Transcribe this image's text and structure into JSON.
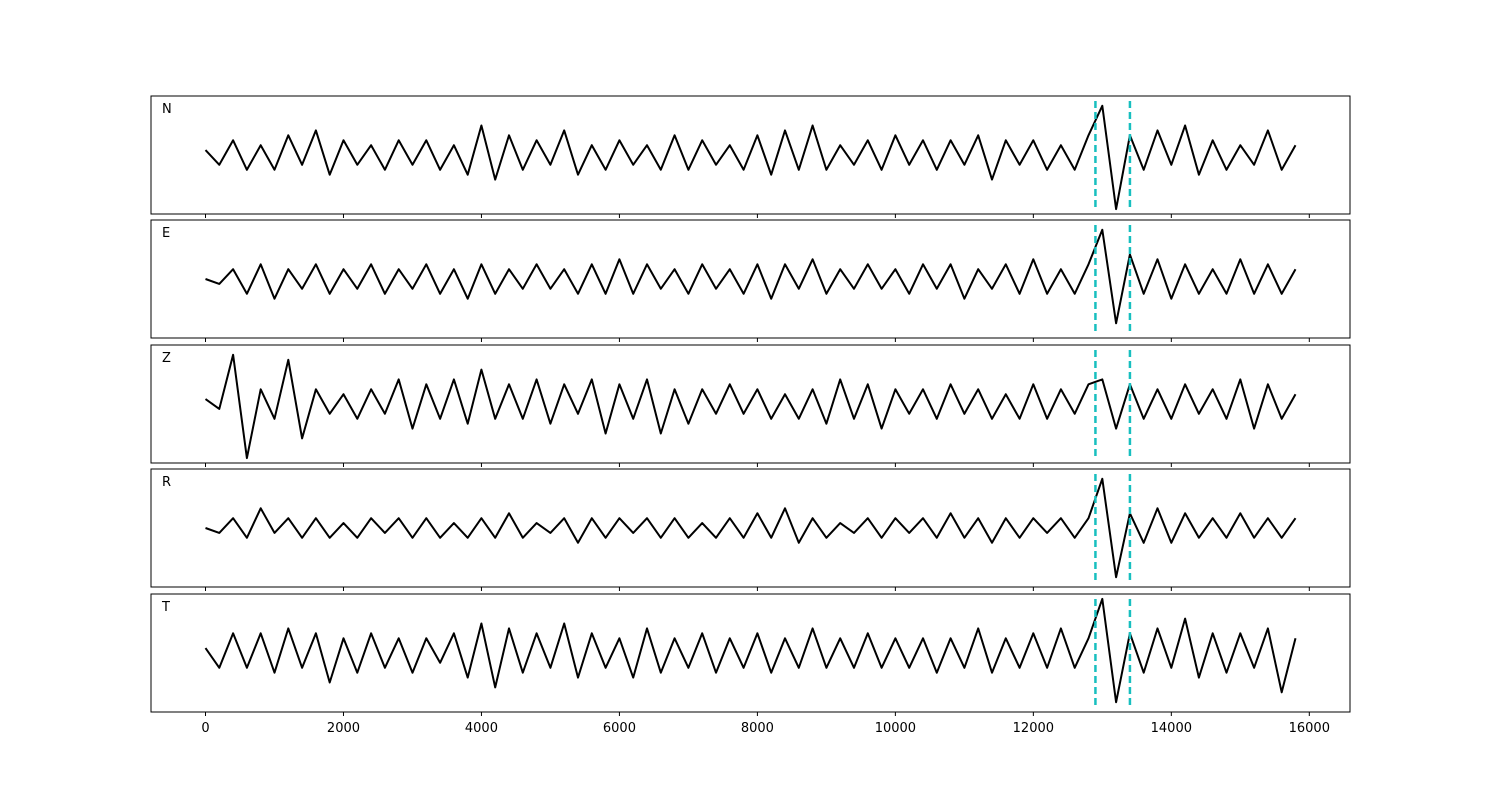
{
  "chart_data": {
    "type": "line",
    "x": [
      0,
      200,
      400,
      600,
      800,
      1000,
      1200,
      1400,
      1600,
      1800,
      2000,
      2200,
      2400,
      2600,
      2800,
      3000,
      3200,
      3400,
      3600,
      3800,
      4000,
      4200,
      4400,
      4600,
      4800,
      5000,
      5200,
      5400,
      5600,
      5800,
      6000,
      6200,
      6400,
      6600,
      6800,
      7000,
      7200,
      7400,
      7600,
      7800,
      8000,
      8200,
      8400,
      8600,
      8800,
      9000,
      9200,
      9400,
      9600,
      9800,
      10000,
      10200,
      10400,
      10600,
      10800,
      11000,
      11200,
      11400,
      11600,
      11800,
      12000,
      12200,
      12400,
      12600,
      12800,
      13000,
      13200,
      13400,
      13600,
      13800,
      14000,
      14200,
      14400,
      14600,
      14800,
      15000,
      15200,
      15400,
      15600,
      15800
    ],
    "xlim": [
      -790,
      16590
    ],
    "xticks": [
      0,
      2000,
      4000,
      6000,
      8000,
      10000,
      12000,
      14000,
      16000
    ],
    "ylim": [
      -1.2,
      1.2
    ],
    "series": [
      {
        "name": "N",
        "color": "#000000",
        "values": [
          0.1,
          -0.2,
          0.3,
          -0.3,
          0.2,
          -0.3,
          0.4,
          -0.2,
          0.5,
          -0.4,
          0.3,
          -0.2,
          0.2,
          -0.3,
          0.3,
          -0.2,
          0.3,
          -0.3,
          0.2,
          -0.4,
          0.6,
          -0.5,
          0.4,
          -0.3,
          0.3,
          -0.2,
          0.5,
          -0.4,
          0.2,
          -0.3,
          0.3,
          -0.2,
          0.2,
          -0.3,
          0.4,
          -0.3,
          0.3,
          -0.2,
          0.2,
          -0.3,
          0.4,
          -0.4,
          0.5,
          -0.3,
          0.6,
          -0.3,
          0.2,
          -0.2,
          0.3,
          -0.3,
          0.4,
          -0.2,
          0.3,
          -0.3,
          0.3,
          -0.2,
          0.4,
          -0.5,
          0.3,
          -0.2,
          0.3,
          -0.3,
          0.2,
          -0.3,
          0.4,
          1.0,
          -1.1,
          0.4,
          -0.3,
          0.5,
          -0.2,
          0.6,
          -0.4,
          0.3,
          -0.3,
          0.2,
          -0.2,
          0.5,
          -0.3,
          0.2
        ]
      },
      {
        "name": "E",
        "color": "#000000",
        "values": [
          0.0,
          -0.1,
          0.2,
          -0.3,
          0.3,
          -0.4,
          0.2,
          -0.2,
          0.3,
          -0.3,
          0.2,
          -0.2,
          0.3,
          -0.3,
          0.2,
          -0.2,
          0.3,
          -0.3,
          0.2,
          -0.4,
          0.3,
          -0.3,
          0.2,
          -0.2,
          0.3,
          -0.2,
          0.2,
          -0.3,
          0.3,
          -0.3,
          0.4,
          -0.3,
          0.3,
          -0.2,
          0.2,
          -0.3,
          0.3,
          -0.2,
          0.2,
          -0.3,
          0.3,
          -0.4,
          0.3,
          -0.2,
          0.4,
          -0.3,
          0.2,
          -0.2,
          0.3,
          -0.2,
          0.2,
          -0.3,
          0.3,
          -0.2,
          0.3,
          -0.4,
          0.2,
          -0.2,
          0.3,
          -0.3,
          0.4,
          -0.3,
          0.2,
          -0.3,
          0.3,
          1.0,
          -0.9,
          0.5,
          -0.3,
          0.4,
          -0.4,
          0.3,
          -0.3,
          0.2,
          -0.3,
          0.4,
          -0.3,
          0.3,
          -0.3,
          0.2
        ]
      },
      {
        "name": "Z",
        "color": "#000000",
        "values": [
          0.1,
          -0.1,
          1.0,
          -1.1,
          0.3,
          -0.3,
          0.9,
          -0.7,
          0.3,
          -0.2,
          0.2,
          -0.3,
          0.3,
          -0.2,
          0.5,
          -0.5,
          0.4,
          -0.3,
          0.5,
          -0.4,
          0.7,
          -0.3,
          0.4,
          -0.3,
          0.5,
          -0.4,
          0.4,
          -0.2,
          0.5,
          -0.6,
          0.4,
          -0.3,
          0.5,
          -0.6,
          0.3,
          -0.4,
          0.3,
          -0.2,
          0.4,
          -0.2,
          0.3,
          -0.3,
          0.2,
          -0.3,
          0.3,
          -0.4,
          0.5,
          -0.3,
          0.4,
          -0.5,
          0.3,
          -0.2,
          0.3,
          -0.3,
          0.4,
          -0.2,
          0.3,
          -0.3,
          0.2,
          -0.3,
          0.4,
          -0.3,
          0.3,
          -0.2,
          0.4,
          0.5,
          -0.5,
          0.4,
          -0.3,
          0.3,
          -0.3,
          0.4,
          -0.2,
          0.3,
          -0.3,
          0.5,
          -0.5,
          0.4,
          -0.3,
          0.2
        ]
      },
      {
        "name": "R",
        "color": "#000000",
        "values": [
          0.0,
          -0.1,
          0.2,
          -0.2,
          0.4,
          -0.1,
          0.2,
          -0.2,
          0.2,
          -0.2,
          0.1,
          -0.2,
          0.2,
          -0.1,
          0.2,
          -0.2,
          0.2,
          -0.2,
          0.1,
          -0.2,
          0.2,
          -0.2,
          0.3,
          -0.2,
          0.1,
          -0.1,
          0.2,
          -0.3,
          0.2,
          -0.2,
          0.2,
          -0.1,
          0.2,
          -0.2,
          0.2,
          -0.2,
          0.1,
          -0.2,
          0.2,
          -0.2,
          0.3,
          -0.2,
          0.4,
          -0.3,
          0.2,
          -0.2,
          0.1,
          -0.1,
          0.2,
          -0.2,
          0.2,
          -0.1,
          0.2,
          -0.2,
          0.3,
          -0.2,
          0.2,
          -0.3,
          0.2,
          -0.2,
          0.2,
          -0.1,
          0.2,
          -0.2,
          0.2,
          1.0,
          -1.0,
          0.3,
          -0.3,
          0.4,
          -0.3,
          0.3,
          -0.2,
          0.2,
          -0.2,
          0.3,
          -0.2,
          0.2,
          -0.2,
          0.2
        ]
      },
      {
        "name": "T",
        "color": "#000000",
        "values": [
          0.1,
          -0.3,
          0.4,
          -0.3,
          0.4,
          -0.4,
          0.5,
          -0.3,
          0.4,
          -0.6,
          0.3,
          -0.4,
          0.4,
          -0.3,
          0.3,
          -0.4,
          0.3,
          -0.2,
          0.4,
          -0.5,
          0.6,
          -0.7,
          0.5,
          -0.4,
          0.4,
          -0.3,
          0.6,
          -0.5,
          0.4,
          -0.3,
          0.3,
          -0.5,
          0.5,
          -0.4,
          0.3,
          -0.3,
          0.4,
          -0.4,
          0.3,
          -0.3,
          0.4,
          -0.4,
          0.3,
          -0.3,
          0.5,
          -0.3,
          0.3,
          -0.3,
          0.4,
          -0.3,
          0.3,
          -0.3,
          0.3,
          -0.4,
          0.3,
          -0.3,
          0.5,
          -0.4,
          0.3,
          -0.3,
          0.4,
          -0.3,
          0.5,
          -0.3,
          0.3,
          1.1,
          -1.0,
          0.4,
          -0.4,
          0.5,
          -0.3,
          0.7,
          -0.5,
          0.4,
          -0.4,
          0.4,
          -0.3,
          0.5,
          -0.8,
          0.3
        ]
      }
    ],
    "vlines": [
      12900,
      13400
    ],
    "vline_color": "#17bfbf"
  }
}
